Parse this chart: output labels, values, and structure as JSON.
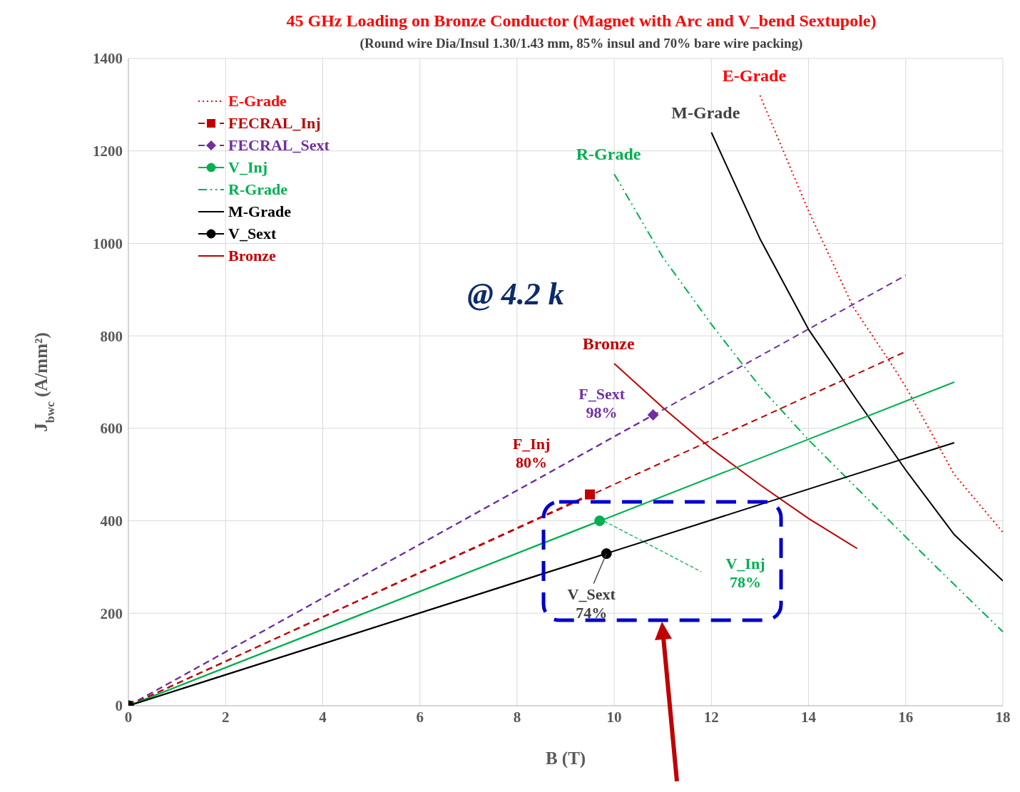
{
  "chart_data": {
    "type": "line",
    "title": "45 GHz Loading on Bronze Conductor (Magnet with Arc and V_bend Sextupole)",
    "subtitle": "(Round wire Dia/Insul 1.30/1.43 mm,  85% insul and 70% bare wire packing)",
    "xlabel": "B (T)",
    "ylabel": "J$_{bwc}$ (A/mm²)",
    "xlim": [
      0,
      18
    ],
    "xticks": [
      0,
      2,
      4,
      6,
      8,
      10,
      12,
      14,
      16,
      18
    ],
    "ylim": [
      0,
      1400
    ],
    "yticks": [
      0,
      200,
      400,
      600,
      800,
      1000,
      1200,
      1400
    ],
    "grid": true,
    "legend": "top left",
    "series": [
      {
        "name": "E-Grade",
        "color": "#ff0000",
        "line_style": "dotted",
        "marker": "none",
        "x": [
          13,
          14,
          14.92,
          15.68,
          16,
          17,
          18
        ],
        "values": [
          1320,
          1070,
          862,
          743,
          690,
          500,
          375
        ]
      },
      {
        "name": "FECRAL_Inj",
        "color": "#c00000",
        "line_style": "dashed",
        "marker": "square",
        "x": [
          0,
          9.5
        ],
        "values": [
          0,
          457
        ]
      },
      {
        "name": "FECRAL_Sext",
        "color": "#7030a0",
        "line_style": "dashed",
        "marker": "diamond",
        "x": [
          0,
          10.8
        ],
        "values": [
          0,
          629
        ]
      },
      {
        "name": "V_Inj",
        "color": "#00b050",
        "line_style": "solid",
        "marker": "circle",
        "x": [
          0,
          9.7
        ],
        "values": [
          0,
          400
        ]
      },
      {
        "name": "R-Grade",
        "color": "#00b050",
        "line_style": "dashdot",
        "marker": "none",
        "x": [
          10,
          11,
          12,
          13,
          14,
          15,
          16,
          17,
          18
        ],
        "values": [
          1150,
          970,
          825,
          690,
          575,
          470,
          365,
          262,
          160
        ]
      },
      {
        "name": "M-Grade",
        "color": "#000000",
        "line_style": "solid",
        "marker": "none",
        "x": [
          12,
          13,
          14,
          15,
          16,
          17,
          18
        ],
        "values": [
          1240,
          1010,
          814,
          660,
          510,
          370,
          270
        ]
      },
      {
        "name": "V_Sext",
        "color": "#000000",
        "line_style": "solid",
        "marker": "circle",
        "x": [
          0,
          9.84
        ],
        "values": [
          0,
          329
        ]
      },
      {
        "name": "Bronze",
        "color": "#c00000",
        "line_style": "solid",
        "marker": "none",
        "x": [
          10,
          11,
          12,
          13,
          14,
          15
        ],
        "values": [
          740,
          645,
          556,
          478,
          405,
          340
        ]
      },
      {
        "color": "#7030a0",
        "line_style": "dashed",
        "marker": "none",
        "x": [
          0,
          16
        ],
        "values": [
          0,
          931
        ]
      },
      {
        "color": "#c00000",
        "line_style": "dashed",
        "marker": "none",
        "x": [
          0,
          16
        ],
        "values": [
          0,
          766
        ]
      },
      {
        "color": "#00b050",
        "line_style": "solid",
        "marker": "none",
        "x": [
          0,
          17
        ],
        "values": [
          0,
          700
        ]
      },
      {
        "color": "#000000",
        "line_style": "solid",
        "marker": "none",
        "x": [
          0,
          17
        ],
        "values": [
          0,
          569
        ]
      }
    ],
    "annotations": [
      "@ 4.2 k",
      {
        "text": "F_Sext 98%",
        "x": 10.8,
        "y": 629
      },
      "F_Inj 80%",
      "V_Inj 78%",
      {
        "text": "V_Sext 74%",
        "x": 9.84,
        "y": 329
      }
    ]
  }
}
